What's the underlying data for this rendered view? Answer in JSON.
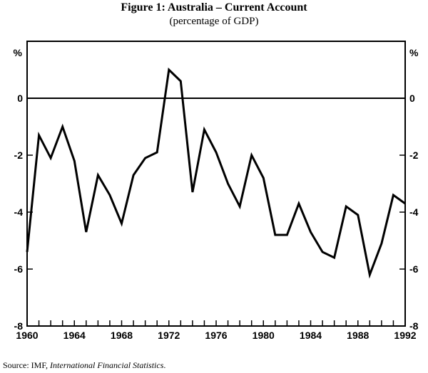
{
  "title": "Figure 1: Australia – Current Account",
  "subtitle": "(percentage of GDP)",
  "source": {
    "prefix": "Source:  IMF, ",
    "italic": "International Financial Statistics",
    "suffix": "."
  },
  "chart_data": {
    "type": "line",
    "ylabel_left": "%",
    "ylabel_right": "%",
    "ylim": [
      -8,
      2
    ],
    "xlim": [
      1960,
      1992
    ],
    "y_ticks": [
      0,
      -2,
      -4,
      -6,
      -8
    ],
    "y_tick_labels": [
      "0",
      "-2",
      "-4",
      "-6",
      "-8"
    ],
    "x_tick_labels": [
      "1960",
      "1964",
      "1968",
      "1972",
      "1976",
      "1980",
      "1984",
      "1988",
      "1992"
    ],
    "zero_line": true,
    "grid": false,
    "series": [
      {
        "x": [
          1960,
          1961,
          1962,
          1963,
          1964,
          1965,
          1966,
          1967,
          1968,
          1969,
          1970,
          1971,
          1972,
          1973,
          1974,
          1975,
          1976,
          1977,
          1978,
          1979,
          1980,
          1981,
          1982,
          1983,
          1984,
          1985,
          1986,
          1987,
          1988,
          1989,
          1990,
          1991,
          1992
        ],
        "values": [
          -5.4,
          -1.3,
          -2.1,
          -1.0,
          -2.2,
          -4.7,
          -2.7,
          -3.4,
          -4.4,
          -2.7,
          -2.1,
          -1.9,
          1.0,
          0.6,
          -3.3,
          -1.1,
          -1.9,
          -3.0,
          -3.8,
          -2.0,
          -2.8,
          -4.8,
          -4.8,
          -3.7,
          -4.7,
          -5.4,
          -5.6,
          -3.8,
          -4.1,
          -6.2,
          -5.1,
          -3.4,
          -3.7
        ]
      }
    ]
  }
}
